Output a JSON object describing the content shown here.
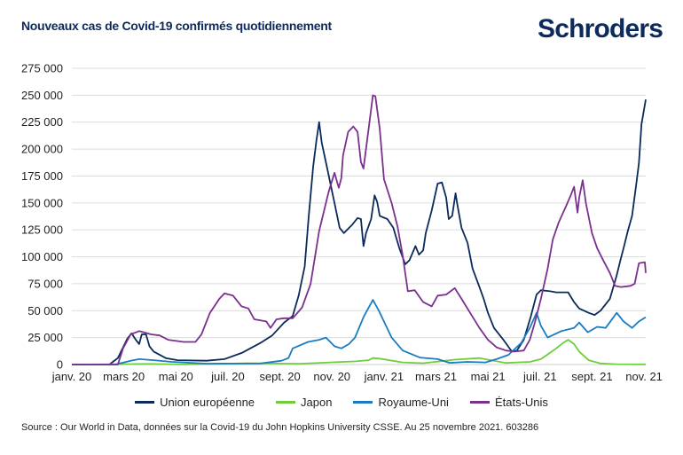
{
  "chart_data": {
    "type": "line",
    "title": "Nouveaux cas de Covid-19 confirmés quotidiennement",
    "xlabel": "",
    "ylabel": "",
    "xlim": [
      "2020-01-22",
      "2021-11-25"
    ],
    "ylim": [
      0,
      275000
    ],
    "y_ticks": [
      0,
      25000,
      50000,
      75000,
      100000,
      125000,
      150000,
      175000,
      200000,
      225000,
      250000,
      275000
    ],
    "y_tick_labels": [
      "0",
      "25 000",
      "50 000",
      "75 000",
      "100 000",
      "125 000",
      "150 000",
      "175 000",
      "200 000",
      "225 000",
      "250 000",
      "275 000"
    ],
    "x_tick_labels": [
      "janv. 20",
      "mars 20",
      "mai 20",
      "juil. 20",
      "sept. 20",
      "nov. 20",
      "janv. 21",
      "mars 21",
      "mai 21",
      "juil. 21",
      "sept. 21",
      "nov. 21"
    ],
    "grid": "horizontal",
    "legend_placement": "bottom",
    "series": [
      {
        "name": "Union européenne",
        "color": "#0b2a5b",
        "points": [
          [
            "2020-01-22",
            0
          ],
          [
            "2020-03-06",
            0
          ],
          [
            "2020-03-16",
            6000
          ],
          [
            "2020-03-27",
            24000
          ],
          [
            "2020-04-01",
            29000
          ],
          [
            "2020-04-06",
            23000
          ],
          [
            "2020-04-10",
            19000
          ],
          [
            "2020-04-13",
            28000
          ],
          [
            "2020-04-18",
            28000
          ],
          [
            "2020-04-22",
            17000
          ],
          [
            "2020-04-27",
            12000
          ],
          [
            "2020-05-11",
            6000
          ],
          [
            "2020-05-25",
            4000
          ],
          [
            "2020-06-28",
            3500
          ],
          [
            "2020-07-19",
            5000
          ],
          [
            "2020-08-09",
            11000
          ],
          [
            "2020-08-30",
            20000
          ],
          [
            "2020-09-13",
            27000
          ],
          [
            "2020-09-27",
            39000
          ],
          [
            "2020-10-07",
            45000
          ],
          [
            "2020-10-14",
            64000
          ],
          [
            "2020-10-21",
            91000
          ],
          [
            "2020-10-26",
            140000
          ],
          [
            "2020-10-31",
            184000
          ],
          [
            "2020-11-04",
            209000
          ],
          [
            "2020-11-07",
            225000
          ],
          [
            "2020-11-10",
            206000
          ],
          [
            "2020-11-16",
            184000
          ],
          [
            "2020-11-25",
            150000
          ],
          [
            "2020-12-01",
            127000
          ],
          [
            "2020-12-06",
            122000
          ],
          [
            "2020-12-16",
            130000
          ],
          [
            "2020-12-22",
            136000
          ],
          [
            "2020-12-26",
            135000
          ],
          [
            "2020-12-29",
            110000
          ],
          [
            "2021-01-01",
            122000
          ],
          [
            "2021-01-07",
            135000
          ],
          [
            "2021-01-11",
            157000
          ],
          [
            "2021-01-14",
            151000
          ],
          [
            "2021-01-17",
            138000
          ],
          [
            "2021-01-26",
            135000
          ],
          [
            "2021-02-02",
            127000
          ],
          [
            "2021-02-09",
            108000
          ],
          [
            "2021-02-16",
            93000
          ],
          [
            "2021-02-21",
            97000
          ],
          [
            "2021-02-28",
            110000
          ],
          [
            "2021-03-04",
            102000
          ],
          [
            "2021-03-09",
            106000
          ],
          [
            "2021-03-12",
            122000
          ],
          [
            "2021-03-19",
            143000
          ],
          [
            "2021-03-26",
            168000
          ],
          [
            "2021-03-31",
            169000
          ],
          [
            "2021-04-05",
            155000
          ],
          [
            "2021-04-08",
            135000
          ],
          [
            "2021-04-12",
            138000
          ],
          [
            "2021-04-16",
            159000
          ],
          [
            "2021-04-18",
            149000
          ],
          [
            "2021-04-23",
            127000
          ],
          [
            "2021-04-30",
            113000
          ],
          [
            "2021-05-06",
            89000
          ],
          [
            "2021-05-14",
            72000
          ],
          [
            "2021-05-19",
            61000
          ],
          [
            "2021-05-24",
            48000
          ],
          [
            "2021-05-31",
            34000
          ],
          [
            "2021-06-11",
            23000
          ],
          [
            "2021-06-21",
            12000
          ],
          [
            "2021-06-27",
            13000
          ],
          [
            "2021-07-05",
            23000
          ],
          [
            "2021-07-13",
            44000
          ],
          [
            "2021-07-20",
            65000
          ],
          [
            "2021-07-25",
            69000
          ],
          [
            "2021-08-05",
            68000
          ],
          [
            "2021-08-12",
            67000
          ],
          [
            "2021-08-26",
            67000
          ],
          [
            "2021-09-02",
            58000
          ],
          [
            "2021-09-08",
            52000
          ],
          [
            "2021-09-19",
            48000
          ],
          [
            "2021-09-26",
            46000
          ],
          [
            "2021-10-03",
            50000
          ],
          [
            "2021-10-14",
            61000
          ],
          [
            "2021-10-22",
            83000
          ],
          [
            "2021-10-27",
            99000
          ],
          [
            "2021-10-30",
            108000
          ],
          [
            "2021-11-04",
            124000
          ],
          [
            "2021-11-09",
            138000
          ],
          [
            "2021-11-14",
            168000
          ],
          [
            "2021-11-17",
            187000
          ],
          [
            "2021-11-20",
            223000
          ],
          [
            "2021-11-25",
            246000
          ]
        ]
      },
      {
        "name": "Japon",
        "color": "#6fcf3a",
        "points": [
          [
            "2020-01-22",
            0
          ],
          [
            "2020-03-31",
            400
          ],
          [
            "2020-04-20",
            600
          ],
          [
            "2020-06-01",
            100
          ],
          [
            "2020-07-29",
            900
          ],
          [
            "2020-08-16",
            1200
          ],
          [
            "2020-10-15",
            700
          ],
          [
            "2020-11-20",
            2000
          ],
          [
            "2020-12-20",
            3000
          ],
          [
            "2021-01-04",
            4000
          ],
          [
            "2021-01-09",
            6000
          ],
          [
            "2021-01-17",
            5500
          ],
          [
            "2021-02-13",
            2000
          ],
          [
            "2021-03-09",
            1200
          ],
          [
            "2021-04-15",
            4500
          ],
          [
            "2021-05-14",
            6000
          ],
          [
            "2021-05-31",
            3500
          ],
          [
            "2021-06-14",
            1500
          ],
          [
            "2021-07-12",
            2500
          ],
          [
            "2021-07-25",
            5000
          ],
          [
            "2021-08-05",
            11000
          ],
          [
            "2021-08-12",
            15000
          ],
          [
            "2021-08-20",
            20000
          ],
          [
            "2021-08-26",
            23000
          ],
          [
            "2021-09-02",
            19000
          ],
          [
            "2021-09-08",
            12000
          ],
          [
            "2021-09-19",
            4000
          ],
          [
            "2021-10-03",
            1000
          ],
          [
            "2021-10-22",
            300
          ],
          [
            "2021-11-25",
            200
          ]
        ]
      },
      {
        "name": "Royaume-Uni",
        "color": "#1a7cc1",
        "points": [
          [
            "2020-01-22",
            0
          ],
          [
            "2020-03-13",
            0
          ],
          [
            "2020-03-31",
            3500
          ],
          [
            "2020-04-10",
            5000
          ],
          [
            "2020-04-27",
            4000
          ],
          [
            "2020-05-18",
            2500
          ],
          [
            "2020-06-28",
            800
          ],
          [
            "2020-08-30",
            1000
          ],
          [
            "2020-09-24",
            3500
          ],
          [
            "2020-10-02",
            6000
          ],
          [
            "2020-10-07",
            15000
          ],
          [
            "2020-10-10",
            16000
          ],
          [
            "2020-10-25",
            21000
          ],
          [
            "2020-11-07",
            23000
          ],
          [
            "2020-11-15",
            25000
          ],
          [
            "2020-11-25",
            17000
          ],
          [
            "2020-12-03",
            15000
          ],
          [
            "2020-12-12",
            19000
          ],
          [
            "2020-12-19",
            25000
          ],
          [
            "2020-12-29",
            44000
          ],
          [
            "2021-01-09",
            60000
          ],
          [
            "2021-01-16",
            50000
          ],
          [
            "2021-01-31",
            25000
          ],
          [
            "2021-02-13",
            13000
          ],
          [
            "2021-03-05",
            6500
          ],
          [
            "2021-03-26",
            5000
          ],
          [
            "2021-04-09",
            1600
          ],
          [
            "2021-04-30",
            2500
          ],
          [
            "2021-05-21",
            2000
          ],
          [
            "2021-06-03",
            5000
          ],
          [
            "2021-06-17",
            9000
          ],
          [
            "2021-07-02",
            20000
          ],
          [
            "2021-07-12",
            34000
          ],
          [
            "2021-07-20",
            48000
          ],
          [
            "2021-07-25",
            36000
          ],
          [
            "2021-08-02",
            25000
          ],
          [
            "2021-08-18",
            31000
          ],
          [
            "2021-09-02",
            34000
          ],
          [
            "2021-09-08",
            39000
          ],
          [
            "2021-09-18",
            30000
          ],
          [
            "2021-09-29",
            35000
          ],
          [
            "2021-10-09",
            34000
          ],
          [
            "2021-10-22",
            48000
          ],
          [
            "2021-10-30",
            40000
          ],
          [
            "2021-11-09",
            34000
          ],
          [
            "2021-11-17",
            40000
          ],
          [
            "2021-11-25",
            44000
          ]
        ]
      },
      {
        "name": "États-Unis",
        "color": "#7b2f8e",
        "points": [
          [
            "2020-01-22",
            0
          ],
          [
            "2020-03-16",
            0
          ],
          [
            "2020-03-22",
            15000
          ],
          [
            "2020-03-31",
            28000
          ],
          [
            "2020-04-10",
            31000
          ],
          [
            "2020-04-24",
            28000
          ],
          [
            "2020-05-04",
            27000
          ],
          [
            "2020-05-14",
            23000
          ],
          [
            "2020-06-01",
            21000
          ],
          [
            "2020-06-15",
            21000
          ],
          [
            "2020-06-22",
            28000
          ],
          [
            "2020-07-02",
            48000
          ],
          [
            "2020-07-13",
            61000
          ],
          [
            "2020-07-19",
            66000
          ],
          [
            "2020-07-29",
            64000
          ],
          [
            "2020-08-08",
            54000
          ],
          [
            "2020-08-16",
            52000
          ],
          [
            "2020-08-23",
            42000
          ],
          [
            "2020-09-06",
            40000
          ],
          [
            "2020-09-11",
            34000
          ],
          [
            "2020-09-18",
            42000
          ],
          [
            "2020-09-27",
            43000
          ],
          [
            "2020-10-07",
            43000
          ],
          [
            "2020-10-18",
            53000
          ],
          [
            "2020-10-28",
            75000
          ],
          [
            "2020-11-07",
            124000
          ],
          [
            "2020-11-18",
            160000
          ],
          [
            "2020-11-25",
            178000
          ],
          [
            "2020-11-30",
            164000
          ],
          [
            "2020-12-03",
            173000
          ],
          [
            "2020-12-05",
            194000
          ],
          [
            "2020-12-11",
            216000
          ],
          [
            "2020-12-17",
            221000
          ],
          [
            "2020-12-22",
            216000
          ],
          [
            "2020-12-26",
            188000
          ],
          [
            "2020-12-29",
            182000
          ],
          [
            "2021-01-04",
            219000
          ],
          [
            "2021-01-09",
            250000
          ],
          [
            "2021-01-12",
            249000
          ],
          [
            "2021-01-17",
            219000
          ],
          [
            "2021-01-22",
            172000
          ],
          [
            "2021-01-31",
            150000
          ],
          [
            "2021-02-07",
            128000
          ],
          [
            "2021-02-13",
            101000
          ],
          [
            "2021-02-19",
            68000
          ],
          [
            "2021-02-27",
            69000
          ],
          [
            "2021-03-09",
            58000
          ],
          [
            "2021-03-19",
            54000
          ],
          [
            "2021-03-26",
            64000
          ],
          [
            "2021-04-05",
            65000
          ],
          [
            "2021-04-15",
            71000
          ],
          [
            "2021-04-23",
            61000
          ],
          [
            "2021-05-03",
            48000
          ],
          [
            "2021-05-14",
            34000
          ],
          [
            "2021-05-24",
            23000
          ],
          [
            "2021-06-03",
            16000
          ],
          [
            "2021-06-14",
            13000
          ],
          [
            "2021-06-24",
            12000
          ],
          [
            "2021-07-05",
            13000
          ],
          [
            "2021-07-12",
            23000
          ],
          [
            "2021-07-18",
            39000
          ],
          [
            "2021-07-25",
            61000
          ],
          [
            "2021-08-02",
            89000
          ],
          [
            "2021-08-08",
            116000
          ],
          [
            "2021-08-15",
            132000
          ],
          [
            "2021-08-23",
            146000
          ],
          [
            "2021-08-29",
            157000
          ],
          [
            "2021-09-02",
            165000
          ],
          [
            "2021-09-06",
            141000
          ],
          [
            "2021-09-08",
            155000
          ],
          [
            "2021-09-12",
            171000
          ],
          [
            "2021-09-16",
            149000
          ],
          [
            "2021-09-23",
            122000
          ],
          [
            "2021-09-29",
            108000
          ],
          [
            "2021-10-06",
            97000
          ],
          [
            "2021-10-14",
            85000
          ],
          [
            "2021-10-20",
            73000
          ],
          [
            "2021-10-27",
            72000
          ],
          [
            "2021-11-07",
            73000
          ],
          [
            "2021-11-12",
            75000
          ],
          [
            "2021-11-17",
            94000
          ],
          [
            "2021-11-24",
            95000
          ],
          [
            "2021-11-25",
            85000
          ]
        ]
      }
    ]
  },
  "header": {
    "title": "Nouveaux cas de Covid-19 confirmés quotidiennement",
    "logo": "Schroders"
  },
  "legend": [
    "Union européenne",
    "Japon",
    "Royaume-Uni",
    "États-Unis"
  ],
  "source": "Source : Our World in Data, données sur la Covid-19 du John Hopkins University CSSE. Au 25 novembre 2021. 603286",
  "colors": {
    "title": "#0d2a5c",
    "grid": "#dcdcdc"
  }
}
